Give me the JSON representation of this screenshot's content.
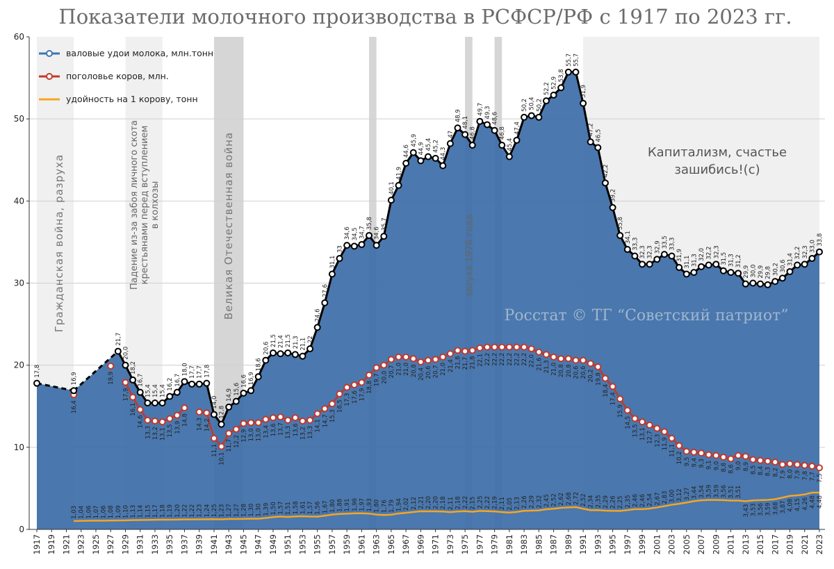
{
  "chart_data": {
    "type": "line",
    "title": "Показатели молочного производства в РСФСР/РФ с 1917 по 2023 гг.",
    "ylim": [
      0,
      60
    ],
    "xlim": [
      1917,
      2023
    ],
    "yticks": [
      "0",
      "10",
      "20",
      "30",
      "40",
      "50",
      "60"
    ],
    "xticks": [
      "1917",
      "1919",
      "1921",
      "1923",
      "1925",
      "1927",
      "1929",
      "1931",
      "1933",
      "1935",
      "1937",
      "1939",
      "1941",
      "1943",
      "1945",
      "1947",
      "1949",
      "1951",
      "1953",
      "1955",
      "1957",
      "1959",
      "1961",
      "1963",
      "1965",
      "1967",
      "1969",
      "1971",
      "1973",
      "1975",
      "1977",
      "1979",
      "1981",
      "1983",
      "1985",
      "1987",
      "1989",
      "1991",
      "1993",
      "1995",
      "1997",
      "1999",
      "2001",
      "2003",
      "2005",
      "2007",
      "2009",
      "2011",
      "2013",
      "2015",
      "2017",
      "2019",
      "2021",
      "2023"
    ],
    "legend_position": "top-left",
    "colors": {
      "milk": "#3d75b0",
      "milk_area": "#3d6ea8",
      "cows": "#c0392b",
      "yield": "#f5a623",
      "band_light": "#f0f0f0",
      "band_dark": "#d6d6d6"
    },
    "series": [
      {
        "name": "валовые удои молока, млн.тонн",
        "x": [
          1917,
          1922,
          1928,
          1929,
          1930,
          1931,
          1932,
          1933,
          1934,
          1935,
          1936,
          1937,
          1938,
          1939,
          1940,
          1941,
          1942,
          1943,
          1944,
          1945,
          1946,
          1947,
          1948,
          1949,
          1950,
          1951,
          1952,
          1953,
          1954,
          1955,
          1956,
          1957,
          1958,
          1959,
          1960,
          1961,
          1962,
          1963,
          1964,
          1965,
          1966,
          1967,
          1968,
          1969,
          1970,
          1971,
          1972,
          1973,
          1974,
          1975,
          1976,
          1977,
          1978,
          1979,
          1980,
          1981,
          1982,
          1983,
          1984,
          1985,
          1986,
          1987,
          1988,
          1989,
          1990,
          1991,
          1992,
          1993,
          1994,
          1995,
          1996,
          1997,
          1998,
          1999,
          2000,
          2001,
          2002,
          2003,
          2004,
          2005,
          2006,
          2007,
          2008,
          2009,
          2010,
          2011,
          2012,
          2013,
          2014,
          2015,
          2016,
          2017,
          2018,
          2019,
          2020,
          2021,
          2022,
          2023
        ],
        "values": [
          17.8,
          16.9,
          21.7,
          20.0,
          18.2,
          16.7,
          15.4,
          15.4,
          15.4,
          16.2,
          16.7,
          18.0,
          17.7,
          17.7,
          17.8,
          14.0,
          12.8,
          14.9,
          15.6,
          16.6,
          16.9,
          18.6,
          20.6,
          21.5,
          21.4,
          21.5,
          21.3,
          21.1,
          22.0,
          24.6,
          27.6,
          31.1,
          33.0,
          34.6,
          34.5,
          34.7,
          35.8,
          34.6,
          35.7,
          40.1,
          41.9,
          44.6,
          45.9,
          44.9,
          45.4,
          45.2,
          44.3,
          47.0,
          48.9,
          48.1,
          46.8,
          49.7,
          49.3,
          48.6,
          46.8,
          45.4,
          47.4,
          50.2,
          50.4,
          50.2,
          52.2,
          52.9,
          53.8,
          55.7,
          55.7,
          51.9,
          47.2,
          46.5,
          42.2,
          39.2,
          35.8,
          34.1,
          33.3,
          32.3,
          32.3,
          32.9,
          33.5,
          33.3,
          31.9,
          31.1,
          31.3,
          32.0,
          32.2,
          32.3,
          31.5,
          31.3,
          31.2,
          29.9,
          30.0,
          29.9,
          29.8,
          30.2,
          30.6,
          31.4,
          32.2,
          32.3,
          33.0,
          33.8
        ],
        "labels": [
          "17,8",
          "16,9",
          "21,7",
          "20,0",
          "18,2",
          "16,7",
          "15,4",
          "15,4",
          "15,4",
          "16,2",
          "16,7",
          "18,0",
          "17,7",
          "17,7",
          "17,8",
          "14,0",
          "12,8",
          "14,9",
          "15,6",
          "16,6",
          "16,9",
          "18,6",
          "20,6",
          "21,5",
          "21,4",
          "21,5",
          "21,3",
          "21,1",
          "22",
          "24,6",
          "27,6",
          "31,1",
          "33",
          "34,6",
          "34,5",
          "34,7",
          "35,8",
          "34,6",
          "35,7",
          "40,1",
          "41,9",
          "44,6",
          "45,9",
          "44,9",
          "45,4",
          "45,2",
          "44,3",
          "47",
          "48,9",
          "48,1",
          "46,8",
          "49,7",
          "49,3",
          "48,6",
          "46,8",
          "45,4",
          "47,4",
          "50,2",
          "50,4",
          "50,2",
          "52,2",
          "52,9",
          "53,8",
          "55,7",
          "55,7",
          "51,9",
          "47,2",
          "46,5",
          "42,2",
          "39,2",
          "35,8",
          "34,1",
          "33,3",
          "32,3",
          "32,3",
          "32,9",
          "33,5",
          "33,3",
          "31,9",
          "31,1",
          "31,3",
          "32,0",
          "32,2",
          "32,3",
          "31,5",
          "31,3",
          "31,2",
          "29,9",
          "30,0",
          "29,9",
          "29,8",
          "30,2",
          "30,6",
          "31,4",
          "32,2",
          "32,3",
          "33,0",
          "33,8"
        ]
      },
      {
        "name": "поголовье коров, млн.",
        "x": [
          1922,
          1927,
          1929,
          1930,
          1931,
          1932,
          1933,
          1934,
          1935,
          1936,
          1937,
          1939,
          1940,
          1941,
          1942,
          1943,
          1944,
          1945,
          1946,
          1947,
          1948,
          1949,
          1950,
          1951,
          1952,
          1953,
          1954,
          1955,
          1956,
          1957,
          1958,
          1959,
          1960,
          1961,
          1962,
          1963,
          1964,
          1965,
          1966,
          1967,
          1968,
          1969,
          1970,
          1971,
          1972,
          1973,
          1974,
          1975,
          1976,
          1977,
          1978,
          1979,
          1980,
          1981,
          1982,
          1983,
          1984,
          1985,
          1986,
          1987,
          1988,
          1989,
          1990,
          1991,
          1992,
          1993,
          1994,
          1995,
          1996,
          1997,
          1998,
          1999,
          2000,
          2001,
          2002,
          2003,
          2004,
          2005,
          2006,
          2007,
          2008,
          2009,
          2010,
          2011,
          2012,
          2013,
          2014,
          2015,
          2016,
          2017,
          2018,
          2019,
          2020,
          2021,
          2022,
          2023
        ],
        "values": [
          16.4,
          19.9,
          17.9,
          16.1,
          14.6,
          13.3,
          13.2,
          13.1,
          13.5,
          13.9,
          14.8,
          14.3,
          14.2,
          11.1,
          10.1,
          11.7,
          12.2,
          12.9,
          13.0,
          13.0,
          13.4,
          13.6,
          13.7,
          13.3,
          13.6,
          13.2,
          13.3,
          14.1,
          14.7,
          15.3,
          16.5,
          17.3,
          17.6,
          17.9,
          18.8,
          19.7,
          20.0,
          20.7,
          21.0,
          21.0,
          20.8,
          20.4,
          20.6,
          20.7,
          21.0,
          21.4,
          21.8,
          21.7,
          21.8,
          22.1,
          22.2,
          22.2,
          22.2,
          22.2,
          22.2,
          22.2,
          22.0,
          21.6,
          21.3,
          21.0,
          20.8,
          20.8,
          20.6,
          20.6,
          20.2,
          19.8,
          18.4,
          17.4,
          15.9,
          14.5,
          13.5,
          13.1,
          12.7,
          12.3,
          11.9,
          11.1,
          10.2,
          9.5,
          9.4,
          9.3,
          9.1,
          9.0,
          8.8,
          8.6,
          9.0,
          8.9,
          8.5,
          8.4,
          8.3,
          8.2,
          7.9,
          8.0,
          7.9,
          7.8,
          7.7,
          7.5
        ],
        "labels": [
          "16,4",
          "19,9",
          "17,9",
          "16,1",
          "14,6",
          "13,3",
          "13,2",
          "13,1",
          "13,5",
          "13,9",
          "14,8",
          "14,3",
          "14,2",
          "11,1",
          "10,1",
          "11,7",
          "12,2",
          "12,9",
          "13,0",
          "13,0",
          "13,4",
          "13,6",
          "13,7",
          "13,3",
          "13,6",
          "13,2",
          "13,3",
          "14,1",
          "14,7",
          "15,3",
          "16,5",
          "17,3",
          "17,6",
          "17,9",
          "18,8",
          "19,7",
          "20,0",
          "20,7",
          "21,0",
          "21,0",
          "20,8",
          "20,4",
          "20,6",
          "20,7",
          "21,0",
          "21,4",
          "21,8",
          "21,7",
          "21,8",
          "22,1",
          "22,2",
          "22,2",
          "22,2",
          "22,2",
          "22,2",
          "22,2",
          "22,0",
          "21,6",
          "21,3",
          "21,0",
          "20,8",
          "20,8",
          "20,6",
          "20,6",
          "20,2",
          "19,8",
          "18,4",
          "17,4",
          "15,9",
          "14,5",
          "13,5",
          "13,1",
          "12,7",
          "12,3",
          "11,9",
          "11,1",
          "10,2",
          "9,5",
          "9,4",
          "9,3",
          "9,1",
          "9,0",
          "8,8",
          "8,6",
          "9,0",
          "8,9",
          "8,5",
          "8,4",
          "8,3",
          "8,2",
          "7,9",
          "8,0",
          "7,9",
          "7,8",
          "7,7",
          "7,5"
        ]
      },
      {
        "name": "удойность на 1 корову, тонн",
        "x": [
          1922,
          1923,
          1924,
          1925,
          1926,
          1927,
          1928,
          1929,
          1930,
          1931,
          1932,
          1933,
          1934,
          1935,
          1936,
          1937,
          1938,
          1939,
          1940,
          1941,
          1942,
          1943,
          1944,
          1945,
          1946,
          1947,
          1948,
          1949,
          1950,
          1951,
          1952,
          1953,
          1954,
          1955,
          1956,
          1957,
          1958,
          1959,
          1960,
          1961,
          1962,
          1963,
          1964,
          1965,
          1966,
          1967,
          1968,
          1969,
          1970,
          1971,
          1972,
          1973,
          1974,
          1975,
          1976,
          1977,
          1978,
          1979,
          1980,
          1981,
          1982,
          1983,
          1984,
          1985,
          1986,
          1987,
          1988,
          1989,
          1990,
          1991,
          1992,
          1993,
          1994,
          1995,
          1996,
          1997,
          1998,
          1999,
          2000,
          2001,
          2002,
          2003,
          2004,
          2005,
          2006,
          2007,
          2008,
          2009,
          2010,
          2011,
          2012,
          2013,
          2014,
          2015,
          2016,
          2017,
          2018,
          2019,
          2020,
          2021,
          2022,
          2023
        ],
        "values": [
          1.03,
          1.04,
          1.06,
          1.07,
          1.06,
          1.08,
          1.09,
          1.1,
          1.13,
          1.14,
          1.15,
          1.17,
          1.18,
          1.19,
          1.2,
          1.22,
          1.22,
          1.23,
          1.24,
          1.25,
          1.23,
          1.27,
          1.27,
          1.28,
          1.3,
          1.3,
          1.39,
          1.5,
          1.57,
          1.51,
          1.58,
          1.61,
          1.57,
          1.56,
          1.67,
          1.8,
          1.88,
          1.91,
          1.96,
          1.97,
          1.93,
          1.8,
          1.76,
          1.79,
          1.94,
          2.02,
          2.12,
          2.21,
          2.2,
          2.2,
          2.18,
          2.11,
          2.18,
          2.22,
          2.15,
          2.25,
          2.22,
          2.19,
          2.11,
          2.05,
          2.13,
          2.26,
          2.29,
          2.32,
          2.45,
          2.52,
          2.62,
          2.68,
          2.72,
          2.52,
          2.34,
          2.35,
          2.29,
          2.26,
          2.25,
          2.35,
          2.46,
          2.46,
          2.54,
          2.67,
          2.83,
          3.0,
          3.12,
          3.27,
          3.44,
          3.54,
          3.59,
          3.59,
          3.56,
          3.51,
          3.51,
          3.43,
          3.53,
          3.56,
          3.59,
          3.68,
          3.87,
          4.08,
          4.15,
          4.26,
          4.48,
          4.48
        ],
        "labels": [
          "1,03",
          "1,04",
          "1,06",
          "1,07",
          "1,06",
          "1,08",
          "1,09",
          "1,10",
          "1,13",
          "1,14",
          "1,15",
          "1,17",
          "1,18",
          "1,19",
          "1,20",
          "1,22",
          "1,22",
          "1,23",
          "1,24",
          "1,25",
          "1,23",
          "1,27",
          "1,27",
          "1,28",
          "1,30",
          "1,30",
          "1,39",
          "1,50",
          "1,57",
          "1,51",
          "1,58",
          "1,61",
          "1,57",
          "1,56",
          "1,67",
          "1,80",
          "1,88",
          "1,91",
          "1,96",
          "1,97",
          "1,93",
          "1,80",
          "1,76",
          "1,79",
          "1,94",
          "2,02",
          "2,12",
          "2,21",
          "2,20",
          "2,20",
          "2,18",
          "2,11",
          "2,18",
          "2,22",
          "2,15",
          "2,25",
          "2,22",
          "2,19",
          "2,11",
          "2,05",
          "2,13",
          "2,26",
          "2,29",
          "2,32",
          "2,45",
          "2,52",
          "2,62",
          "2,68",
          "2,72",
          "2,52",
          "2,34",
          "2,35",
          "2,29",
          "2,26",
          "2,25",
          "2,35",
          "2,46",
          "2,46",
          "2,54",
          "2,67",
          "2,83",
          "3,00",
          "3,12",
          "3,27",
          "3,44",
          "3,54",
          "3,59",
          "3,59",
          "3,56",
          "3,51",
          "3,51",
          "3,43",
          "3,53",
          "3,56",
          "3,59",
          "3,68",
          "3,87",
          "4,08",
          "4,15",
          "4,26",
          "4,48",
          "4,48"
        ]
      }
    ],
    "bands": [
      {
        "from": 1917,
        "to": 1922,
        "shade": "light",
        "text": "Гражданская   война,  разруха"
      },
      {
        "from": 1929,
        "to": 1934,
        "shade": "light",
        "text": "Падение из-за забоя личного скота|крестьянами перед вступлением|в колхозы"
      },
      {
        "from": 1941,
        "to": 1945,
        "shade": "dark",
        "text": "Великая  Отечественная   война"
      },
      {
        "from": 1962,
        "to": 1963,
        "shade": "dark",
        "text": ""
      },
      {
        "from": 1975,
        "to": 1976,
        "shade": "dark",
        "text": "засуха 1976 года"
      },
      {
        "from": 1979,
        "to": 1980,
        "shade": "dark",
        "text": ""
      },
      {
        "from": 1991,
        "to": 2023,
        "shade": "light",
        "text": ""
      }
    ],
    "annotation": "Капитализм, счастье|зашибись!(с)",
    "watermark": "Росстат © ТГ “Советский патриот”"
  }
}
